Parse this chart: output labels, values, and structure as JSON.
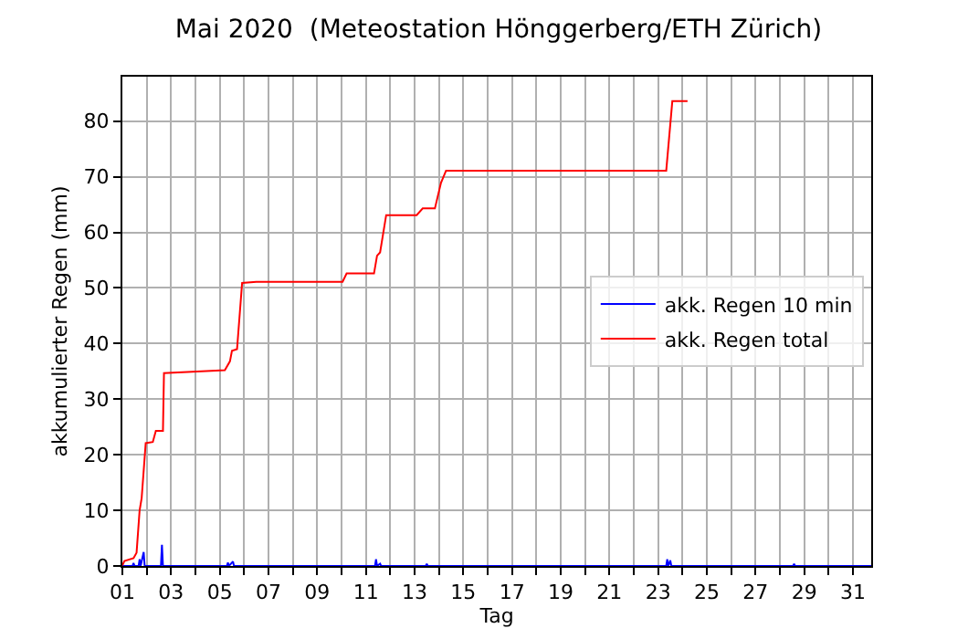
{
  "chart_data": {
    "type": "line",
    "title": "Mai 2020  (Meteostation Hönggerberg/ETH Zürich)",
    "xlabel": "Tag",
    "ylabel": "akkumulierter Regen (mm)",
    "xlim": [
      "2020-05-01T00:00",
      "2020-05-31T18:00"
    ],
    "xticks": [
      {
        "value": "2020-05-01",
        "label": "01"
      },
      {
        "value": "2020-05-02",
        "label": null
      },
      {
        "value": "2020-05-03",
        "label": "03"
      },
      {
        "value": "2020-05-04",
        "label": null
      },
      {
        "value": "2020-05-05",
        "label": "05"
      },
      {
        "value": "2020-05-06",
        "label": null
      },
      {
        "value": "2020-05-07",
        "label": "07"
      },
      {
        "value": "2020-05-08",
        "label": null
      },
      {
        "value": "2020-05-09",
        "label": "09"
      },
      {
        "value": "2020-05-10",
        "label": null
      },
      {
        "value": "2020-05-11",
        "label": "11"
      },
      {
        "value": "2020-05-12",
        "label": null
      },
      {
        "value": "2020-05-13",
        "label": "13"
      },
      {
        "value": "2020-05-14",
        "label": null
      },
      {
        "value": "2020-05-15",
        "label": "15"
      },
      {
        "value": "2020-05-16",
        "label": null
      },
      {
        "value": "2020-05-17",
        "label": "17"
      },
      {
        "value": "2020-05-18",
        "label": null
      },
      {
        "value": "2020-05-19",
        "label": "19"
      },
      {
        "value": "2020-05-20",
        "label": null
      },
      {
        "value": "2020-05-21",
        "label": "21"
      },
      {
        "value": "2020-05-22",
        "label": null
      },
      {
        "value": "2020-05-23",
        "label": "23"
      },
      {
        "value": "2020-05-24",
        "label": null
      },
      {
        "value": "2020-05-25",
        "label": "25"
      },
      {
        "value": "2020-05-26",
        "label": null
      },
      {
        "value": "2020-05-27",
        "label": "27"
      },
      {
        "value": "2020-05-28",
        "label": null
      },
      {
        "value": "2020-05-29",
        "label": "29"
      },
      {
        "value": "2020-05-30",
        "label": null
      },
      {
        "value": "2020-05-31",
        "label": "31"
      }
    ],
    "ylim": [
      0,
      88
    ],
    "yticks": [
      0,
      10,
      20,
      30,
      40,
      50,
      60,
      70,
      80
    ],
    "grid": true,
    "legend": "right",
    "marker": "none",
    "line_style": "solid",
    "series": [
      {
        "name": "akk. Regen 10 min",
        "color": "#0000ff",
        "x": [
          "2020-05-01T00:00",
          "2020-05-01T10:00",
          "2020-05-01T11:00",
          "2020-05-01T12:00",
          "2020-05-01T16:00",
          "2020-05-01T17:00",
          "2020-05-01T18:00",
          "2020-05-01T21:00",
          "2020-05-01T22:00",
          "2020-05-02T14:00",
          "2020-05-02T15:00",
          "2020-05-02T16:00",
          "2020-05-05T07:00",
          "2020-05-05T08:00",
          "2020-05-05T09:00",
          "2020-05-05T13:00",
          "2020-05-05T14:00",
          "2020-05-11T09:00",
          "2020-05-11T10:00",
          "2020-05-11T11:00",
          "2020-05-11T14:00",
          "2020-05-11T15:00",
          "2020-05-13T11:00",
          "2020-05-13T12:00",
          "2020-05-13T13:00",
          "2020-05-23T08:00",
          "2020-05-23T09:00",
          "2020-05-23T10:00",
          "2020-05-23T12:00",
          "2020-05-23T13:00",
          "2020-05-28T13:00",
          "2020-05-28T14:00",
          "2020-05-28T15:00",
          "2020-05-31T18:00"
        ],
        "values": [
          0,
          0,
          0.5,
          0,
          0,
          1.2,
          0,
          2.5,
          0,
          0,
          3.8,
          0,
          0,
          0.6,
          0,
          0.8,
          0,
          0,
          1.2,
          0,
          0.4,
          0,
          0,
          0.4,
          0,
          0,
          1.2,
          0,
          1,
          0,
          0,
          0.4,
          0,
          0
        ]
      },
      {
        "name": "akk. Regen total",
        "color": "#ff0000",
        "x": [
          "2020-05-01T00:00",
          "2020-05-01T02:00",
          "2020-05-01T11:00",
          "2020-05-01T14:00",
          "2020-05-01T17:00",
          "2020-05-01T19:00",
          "2020-05-01T23:00",
          "2020-05-02T06:00",
          "2020-05-02T09:00",
          "2020-05-02T16:00",
          "2020-05-02T17:00",
          "2020-05-04T06:00",
          "2020-05-05T05:00",
          "2020-05-05T10:00",
          "2020-05-05T12:00",
          "2020-05-05T17:00",
          "2020-05-05T22:00",
          "2020-05-06T12:00",
          "2020-05-10T01:00",
          "2020-05-10T05:00",
          "2020-05-11T08:00",
          "2020-05-11T11:00",
          "2020-05-11T14:00",
          "2020-05-11T20:00",
          "2020-05-13T02:00",
          "2020-05-13T08:00",
          "2020-05-13T20:00",
          "2020-05-14T02:00",
          "2020-05-14T07:00",
          "2020-05-23T08:00",
          "2020-05-23T14:00",
          "2020-05-24T05:00"
        ],
        "values": [
          0.1,
          0.9,
          1.4,
          2.4,
          10,
          12.2,
          22.1,
          22.3,
          24.3,
          24.3,
          34.7,
          35,
          35.2,
          36.8,
          38.7,
          39,
          50.9,
          51.1,
          51.1,
          52.6,
          52.6,
          55.8,
          56.4,
          63.1,
          63.1,
          64.3,
          64.3,
          68.9,
          71.1,
          71.1,
          83.6,
          83.6
        ]
      }
    ]
  }
}
